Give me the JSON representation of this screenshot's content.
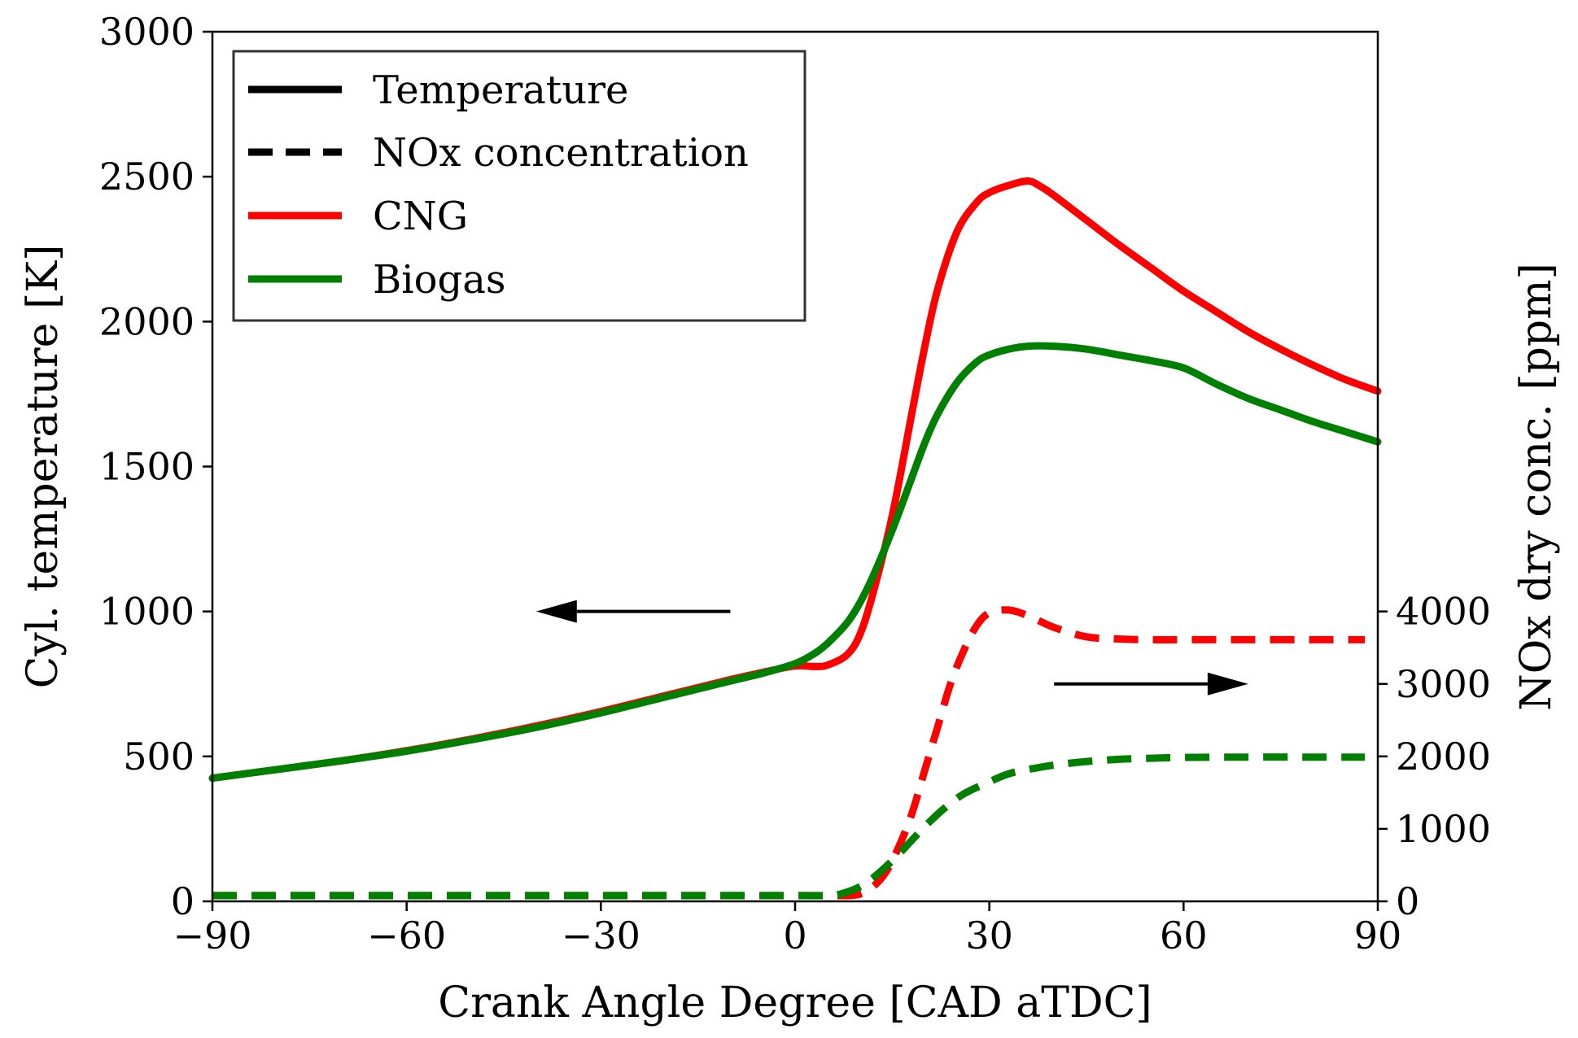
{
  "chart_data": {
    "type": "line",
    "title": "",
    "xlabel": "Crank Angle Degree [CAD aTDC]",
    "ylabel_left": "Cyl. temperature [K]",
    "ylabel_right": "NOx dry conc. [ppm]",
    "xlim": [
      -90,
      90
    ],
    "ylim_left": [
      0,
      3000
    ],
    "ylim_right": [
      0,
      12000
    ],
    "x_ticks": [
      -90,
      -60,
      -30,
      0,
      30,
      60,
      90
    ],
    "x_tick_labels": [
      "−90",
      "−60",
      "−30",
      "0",
      "30",
      "60",
      "90"
    ],
    "y_left_ticks": [
      0,
      500,
      1000,
      1500,
      2000,
      2500,
      3000
    ],
    "y_left_tick_labels": [
      "0",
      "500",
      "1000",
      "1500",
      "2000",
      "2500",
      "3000"
    ],
    "y_right_ticks": [
      0,
      1000,
      2000,
      3000,
      4000
    ],
    "y_right_tick_labels": [
      "0",
      "1000",
      "2000",
      "3000",
      "4000"
    ],
    "grid": false,
    "legend_position": "top-left",
    "legend": [
      {
        "label": "Temperature",
        "style": "solid",
        "color": "#000000"
      },
      {
        "label": "NOx concentration",
        "style": "dashed",
        "color": "#000000"
      },
      {
        "label": "CNG",
        "style": "solid",
        "color": "#ff0000"
      },
      {
        "label": "Biogas",
        "style": "solid",
        "color": "#008000"
      }
    ],
    "series": [
      {
        "name": "CNG temperature",
        "fuel": "CNG",
        "quantity": "Temperature",
        "axis": "left",
        "color": "#ff0000",
        "style": "solid",
        "x": [
          -90,
          -80,
          -70,
          -60,
          -50,
          -40,
          -30,
          -20,
          -10,
          -5,
          0,
          3,
          5,
          8,
          10,
          12,
          15,
          18,
          20,
          22,
          25,
          28,
          30,
          33,
          36,
          38,
          40,
          45,
          50,
          55,
          60,
          65,
          70,
          75,
          80,
          85,
          90
        ],
        "values": [
          425,
          455,
          485,
          520,
          560,
          605,
          655,
          710,
          765,
          790,
          812,
          810,
          815,
          850,
          920,
          1060,
          1330,
          1680,
          1910,
          2110,
          2310,
          2410,
          2445,
          2470,
          2485,
          2465,
          2435,
          2350,
          2265,
          2185,
          2105,
          2035,
          1965,
          1905,
          1850,
          1800,
          1760
        ]
      },
      {
        "name": "Biogas temperature",
        "fuel": "Biogas",
        "quantity": "Temperature",
        "axis": "left",
        "color": "#008000",
        "style": "solid",
        "x": [
          -90,
          -80,
          -70,
          -60,
          -50,
          -40,
          -30,
          -20,
          -10,
          -5,
          0,
          3,
          5,
          8,
          10,
          12,
          15,
          18,
          20,
          22,
          25,
          28,
          30,
          33,
          36,
          40,
          45,
          50,
          55,
          60,
          65,
          70,
          75,
          80,
          85,
          90
        ],
        "values": [
          425,
          455,
          485,
          518,
          557,
          600,
          650,
          705,
          760,
          787,
          820,
          855,
          890,
          960,
          1030,
          1120,
          1280,
          1460,
          1580,
          1680,
          1790,
          1860,
          1885,
          1905,
          1915,
          1915,
          1905,
          1885,
          1865,
          1840,
          1785,
          1735,
          1695,
          1655,
          1620,
          1585
        ]
      },
      {
        "name": "CNG NOx",
        "fuel": "CNG",
        "quantity": "NOx concentration",
        "axis": "right",
        "color": "#ff0000",
        "style": "dashed",
        "x": [
          -90,
          -70,
          -50,
          -30,
          -10,
          0,
          5,
          8,
          10,
          12,
          14,
          16,
          18,
          20,
          22,
          24,
          26,
          28,
          30,
          33,
          36,
          40,
          45,
          50,
          55,
          60,
          70,
          80,
          88
        ],
        "values": [
          80,
          80,
          80,
          80,
          80,
          80,
          80,
          80,
          100,
          200,
          400,
          750,
          1200,
          1800,
          2400,
          3000,
          3450,
          3800,
          3980,
          4020,
          3940,
          3780,
          3650,
          3620,
          3610,
          3610,
          3610,
          3610,
          3610
        ]
      },
      {
        "name": "Biogas NOx",
        "fuel": "Biogas",
        "quantity": "NOx concentration",
        "axis": "right",
        "color": "#008000",
        "style": "dashed",
        "x": [
          -90,
          -70,
          -50,
          -30,
          -10,
          0,
          5,
          7,
          10,
          12,
          15,
          18,
          20,
          23,
          26,
          30,
          33,
          36,
          40,
          45,
          50,
          55,
          60,
          70,
          80,
          88
        ],
        "values": [
          80,
          80,
          80,
          80,
          80,
          80,
          80,
          100,
          200,
          320,
          560,
          840,
          1030,
          1280,
          1480,
          1650,
          1760,
          1820,
          1880,
          1930,
          1960,
          1975,
          1985,
          1990,
          1990,
          1990
        ]
      }
    ],
    "annotations": [
      {
        "type": "arrow",
        "direction": "left",
        "meaning": "points to temperature axis",
        "from": [
          -10,
          1000
        ],
        "to": [
          -40,
          1000
        ],
        "axis": "left"
      },
      {
        "type": "arrow",
        "direction": "right",
        "meaning": "points to NOx axis",
        "from": [
          40,
          3000
        ],
        "to": [
          70,
          3000
        ],
        "axis": "right"
      }
    ]
  }
}
